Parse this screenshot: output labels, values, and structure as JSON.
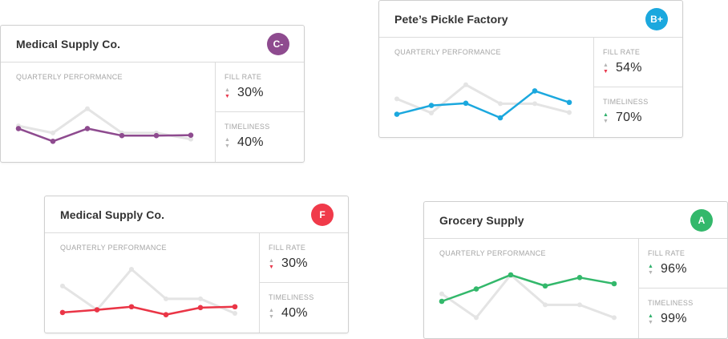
{
  "cards": [
    {
      "title": "Medical Supply Co.",
      "grade": "C-",
      "grade_color": "#8e4b8f",
      "line_color": "#8e4b8f",
      "perf_label": "QUARTERLY PERFORMANCE",
      "fill_rate": {
        "label": "FILL RATE",
        "value": "30%",
        "trend": "down"
      },
      "timeliness": {
        "label": "TIMELINESS",
        "value": "40%",
        "trend": "neutral"
      },
      "chart_data": {
        "type": "line",
        "series": [
          {
            "role": "baseline",
            "values": [
              0.62,
              0.78,
              0.23,
              0.78,
              0.78,
              0.92
            ]
          },
          {
            "role": "current",
            "values": [
              0.68,
              0.97,
              0.68,
              0.84,
              0.84,
              0.83
            ]
          }
        ]
      }
    },
    {
      "title": "Pete’s Pickle Factory",
      "grade": "B+",
      "grade_color": "#1ba8de",
      "line_color": "#1ba8de",
      "perf_label": "QUARTERLY PERFORMANCE",
      "fill_rate": {
        "label": "FILL RATE",
        "value": "54%",
        "trend": "down"
      },
      "timeliness": {
        "label": "TIMELINESS",
        "value": "70%",
        "trend": "up"
      },
      "chart_data": {
        "type": "line",
        "series": [
          {
            "role": "baseline",
            "values": [
              0.57,
              0.89,
              0.25,
              0.68,
              0.68,
              0.88
            ]
          },
          {
            "role": "current",
            "values": [
              0.92,
              0.72,
              0.67,
              1.0,
              0.39,
              0.65
            ]
          }
        ]
      }
    },
    {
      "title": "Medical Supply Co.",
      "grade": "F",
      "grade_color": "#f03a4a",
      "line_color": "#ea3546",
      "perf_label": "QUARTERLY PERFORMANCE",
      "fill_rate": {
        "label": "FILL RATE",
        "value": "30%",
        "trend": "down"
      },
      "timeliness": {
        "label": "TIMELINESS",
        "value": "40%",
        "trend": "neutral"
      },
      "chart_data": {
        "type": "line",
        "series": [
          {
            "role": "baseline",
            "values": [
              0.38,
              0.92,
              0.0,
              0.67,
              0.67,
              1.0
            ]
          },
          {
            "role": "current",
            "values": [
              0.98,
              0.92,
              0.85,
              1.03,
              0.87,
              0.85
            ]
          }
        ]
      }
    },
    {
      "title": "Grocery Supply",
      "grade": "A",
      "grade_color": "#33b86b",
      "line_color": "#33b86b",
      "perf_label": "QUARTERLY PERFORMANCE",
      "fill_rate": {
        "label": "FILL RATE",
        "value": "96%",
        "trend": "up"
      },
      "timeliness": {
        "label": "TIMELINESS",
        "value": "99%",
        "trend": "up"
      },
      "chart_data": {
        "type": "line",
        "series": [
          {
            "role": "baseline",
            "values": [
              0.43,
              0.97,
              0.0,
              0.68,
              0.68,
              0.97
            ]
          },
          {
            "role": "current",
            "values": [
              0.6,
              0.32,
              0.0,
              0.25,
              0.06,
              0.2
            ]
          }
        ]
      }
    }
  ]
}
